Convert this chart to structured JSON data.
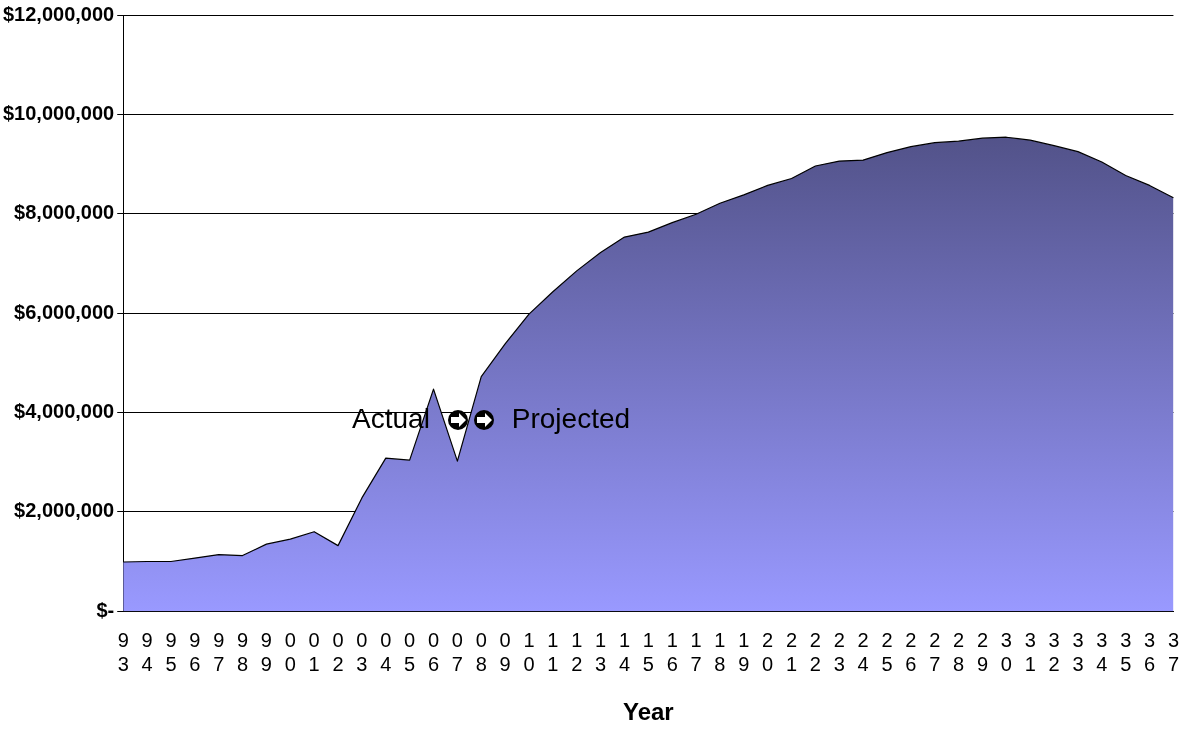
{
  "chart_data": {
    "type": "area",
    "xlabel": "Year",
    "categories": [
      "93",
      "94",
      "95",
      "96",
      "97",
      "98",
      "99",
      "00",
      "01",
      "02",
      "03",
      "04",
      "05",
      "06",
      "07",
      "08",
      "09",
      "10",
      "11",
      "12",
      "13",
      "14",
      "15",
      "16",
      "17",
      "18",
      "19",
      "20",
      "21",
      "22",
      "23",
      "24",
      "25",
      "26",
      "27",
      "28",
      "29",
      "30",
      "31",
      "32",
      "33",
      "34",
      "35",
      "36",
      "37"
    ],
    "series": [
      {
        "color": "#9999ff",
        "values": [
          990000,
          1000000,
          1000000,
          1070000,
          1140000,
          1120000,
          1350000,
          1450000,
          1600000,
          1320000,
          2280000,
          3080000,
          3040000,
          4470000,
          3020000,
          4720000,
          5380000,
          5980000,
          6430000,
          6850000,
          7220000,
          7530000,
          7630000,
          7820000,
          7990000,
          8210000,
          8380000,
          8570000,
          8710000,
          8960000,
          9060000,
          9080000,
          9230000,
          9350000,
          9430000,
          9460000,
          9520000,
          9540000,
          9480000,
          9370000,
          9250000,
          9040000,
          8770000,
          8570000,
          8320000
        ]
      }
    ],
    "ylim": [
      0,
      12000000
    ],
    "yticks": [
      {
        "value": 0,
        "label": "$-"
      },
      {
        "value": 2000000,
        "label": "$2,000,000"
      },
      {
        "value": 4000000,
        "label": "$4,000,000"
      },
      {
        "value": 6000000,
        "label": "$6,000,000"
      },
      {
        "value": 8000000,
        "label": "$8,000,000"
      },
      {
        "value": 10000000,
        "label": "$10,000,000"
      },
      {
        "value": 12000000,
        "label": "$12,000,000"
      }
    ],
    "grid": "y",
    "legend": false,
    "annotations": [
      "Actual",
      "Projected"
    ]
  }
}
